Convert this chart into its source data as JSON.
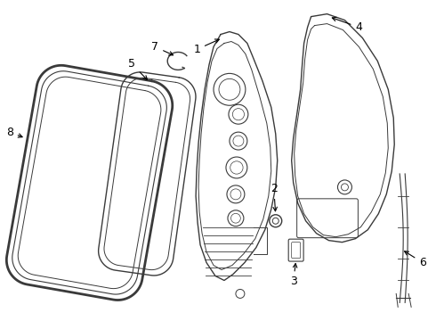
{
  "bg_color": "#ffffff",
  "line_color": "#3a3a3a",
  "label_color": "#000000",
  "figsize": [
    4.9,
    3.6
  ],
  "dpi": 100
}
